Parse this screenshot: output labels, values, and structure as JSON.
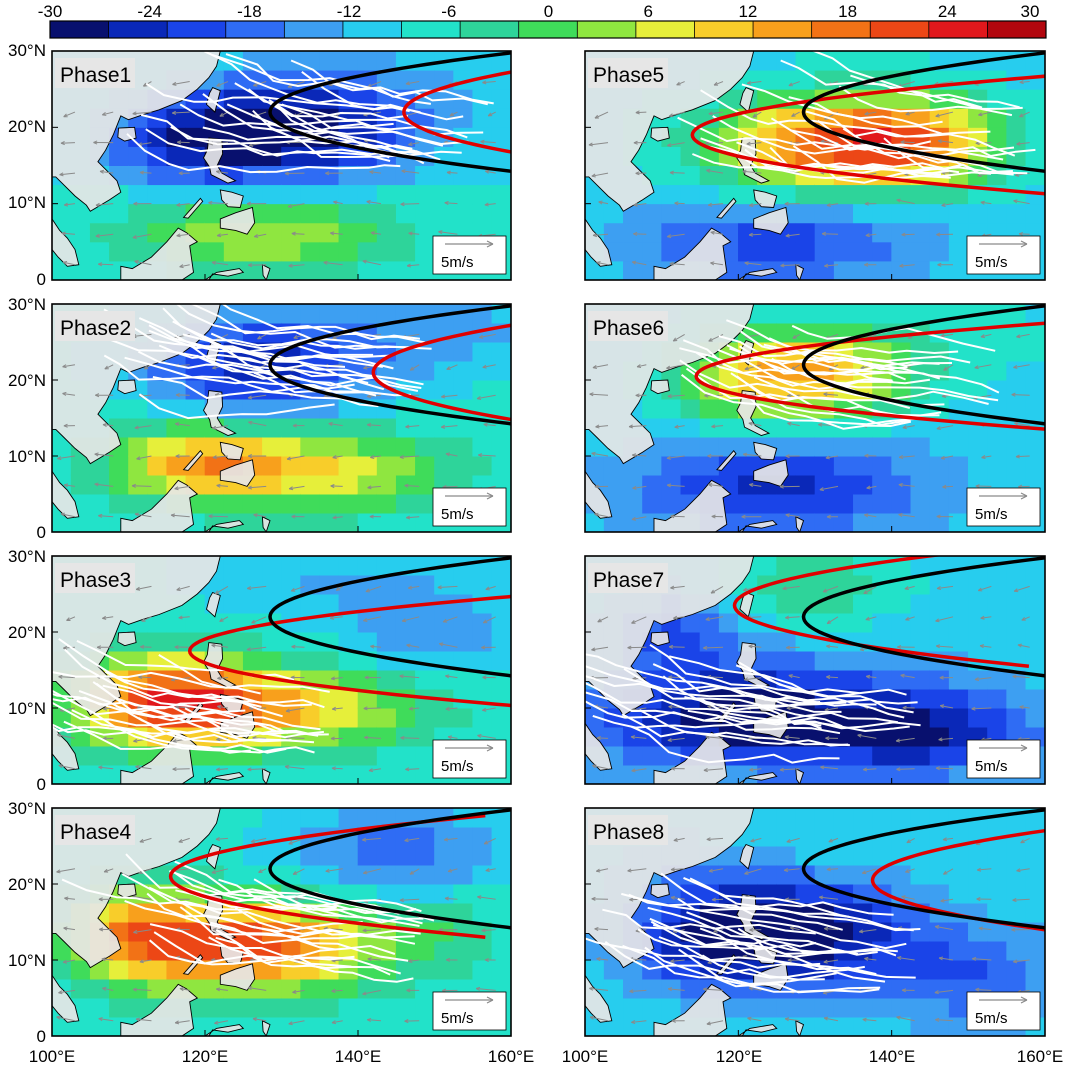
{
  "colorbar": {
    "ticks": [
      "-30",
      "-24",
      "-18",
      "-12",
      "-6",
      "0",
      "6",
      "12",
      "18",
      "24",
      "30"
    ],
    "colors": [
      "#08106e",
      "#0a28b8",
      "#1a44e8",
      "#2f6cf4",
      "#3d9ff2",
      "#27cdee",
      "#22e2c9",
      "#2ed49a",
      "#3fdc5a",
      "#8fe640",
      "#e6ef3a",
      "#f8cd2a",
      "#f8a01c",
      "#f27216",
      "#ec4716",
      "#e1181c",
      "#b2060e"
    ]
  },
  "axes": {
    "lat_ticks": [
      "0",
      "10°N",
      "20°N",
      "30°N"
    ],
    "lon_ticks": [
      "100°E",
      "120°E",
      "140°E",
      "160°E"
    ]
  },
  "scale_vector": "5m/s",
  "panels": [
    {
      "label": "Phase1",
      "anomaly": "negative",
      "center": [
        134,
        20
      ]
    },
    {
      "label": "Phase2",
      "anomaly": "mixed",
      "center": [
        126,
        22
      ]
    },
    {
      "label": "Phase3",
      "anomaly": "positive",
      "center": [
        113,
        10
      ]
    },
    {
      "label": "Phase4",
      "anomaly": "positive",
      "center": [
        127,
        13
      ]
    },
    {
      "label": "Phase5",
      "anomaly": "positive",
      "center": [
        135,
        19
      ]
    },
    {
      "label": "Phase6",
      "anomaly": "mixed",
      "center": [
        130,
        20
      ]
    },
    {
      "label": "Phase7",
      "anomaly": "negative",
      "center": [
        120,
        8
      ]
    },
    {
      "label": "Phase8",
      "anomaly": "negative",
      "center": [
        120,
        12
      ]
    }
  ],
  "legend_colors": {
    "black_line": "#000000",
    "red_line": "#e00000",
    "tracks": "#ffffff",
    "land": "#e6e6e6",
    "vectors": "#8a8a8a"
  }
}
